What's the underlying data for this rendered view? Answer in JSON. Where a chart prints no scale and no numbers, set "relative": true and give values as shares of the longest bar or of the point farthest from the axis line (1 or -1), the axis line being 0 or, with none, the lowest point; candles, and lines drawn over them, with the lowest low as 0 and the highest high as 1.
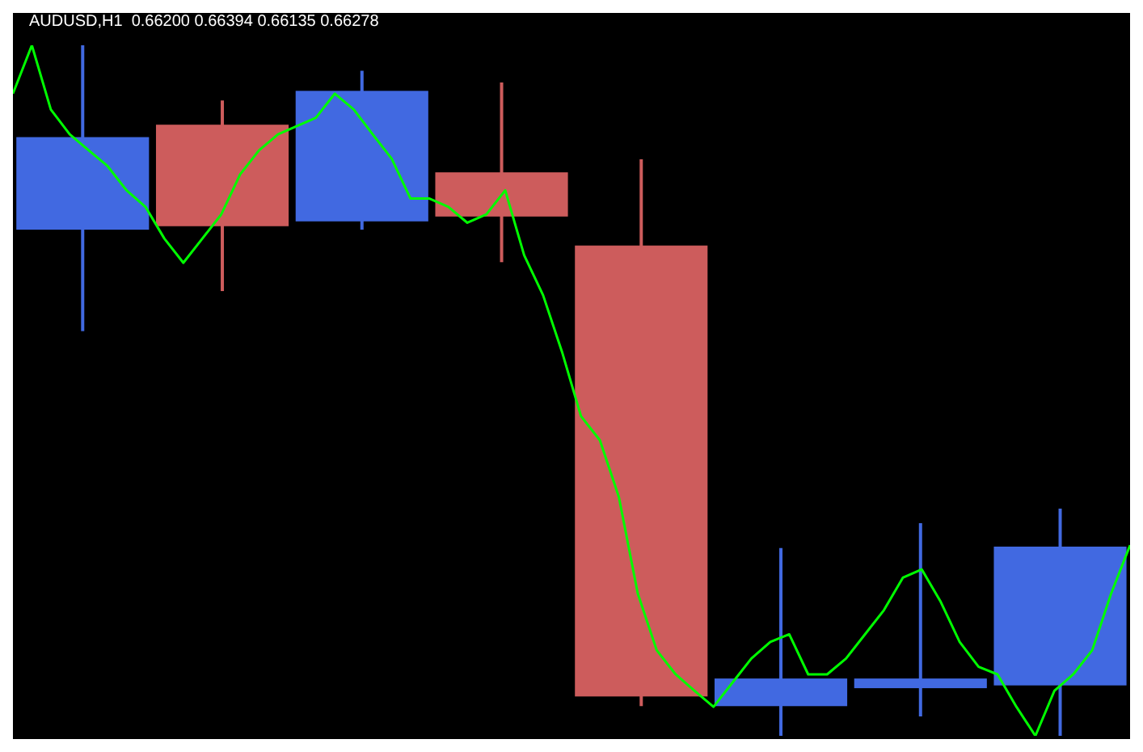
{
  "chart_data": [
    {
      "type": "candlestick",
      "title": "AUDUSD,H1  0.66200 0.66394 0.66135 0.66278",
      "relative": true,
      "categories": [
        null,
        null,
        null,
        null,
        null,
        null,
        null,
        null
      ],
      "ohlc": [
        [
          0.733,
          1,
          0.586,
          0.867
        ],
        [
          0.885,
          0.92,
          0.644,
          0.738
        ],
        [
          0.745,
          0.963,
          0.733,
          0.934
        ],
        [
          0.816,
          0.946,
          0.686,
          0.752
        ],
        [
          0.71,
          0.835,
          0.043,
          0.057
        ],
        [
          0.043,
          0.272,
          0,
          0.083
        ],
        [
          0.069,
          0.308,
          0.028,
          0.083
        ],
        [
          0.073,
          0.329,
          0,
          0.274
        ]
      ],
      "colors": [
        "#4169e1",
        "#cd5c5c",
        "#4169e1",
        "#cd5c5c",
        "#cd5c5c",
        "#4169e1",
        "#4169e1",
        "#4169e1"
      ]
    },
    {
      "type": "line",
      "relative": true,
      "categories": [
        null,
        null,
        null,
        null,
        null,
        null,
        null,
        null,
        null,
        null,
        null,
        null,
        null,
        null,
        null,
        null,
        null,
        null,
        null,
        null,
        null,
        null,
        null,
        null,
        null,
        null,
        null,
        null,
        null,
        null,
        null,
        null,
        null,
        null,
        null,
        null,
        null,
        null,
        null,
        null,
        null,
        null,
        null,
        null,
        null,
        null,
        null,
        null,
        null,
        null,
        null,
        null,
        null,
        null,
        null,
        null,
        null,
        null,
        null,
        null
      ],
      "series": [
        {
          "color": "#00ff00",
          "values": [
            0.93,
            1,
            0.907,
            0.871,
            0.848,
            0.825,
            0.79,
            0.766,
            0.72,
            0.685,
            0.72,
            0.755,
            0.813,
            0.848,
            0.871,
            0.883,
            0.895,
            0.93,
            0.907,
            0.871,
            0.836,
            0.778,
            0.778,
            0.766,
            0.743,
            0.755,
            0.79,
            0.696,
            0.638,
            0.556,
            0.463,
            0.428,
            0.346,
            0.206,
            0.124,
            0.089,
            0.065,
            0.042,
            0.077,
            0.112,
            0.136,
            0.147,
            0.089,
            0.089,
            0.112,
            0.147,
            0.182,
            0.229,
            0.241,
            0.194,
            0.136,
            0.1,
            0.089,
            0.042,
            0,
            0.065,
            0.089,
            0.124,
            0.206,
            0.276
          ]
        }
      ]
    }
  ]
}
